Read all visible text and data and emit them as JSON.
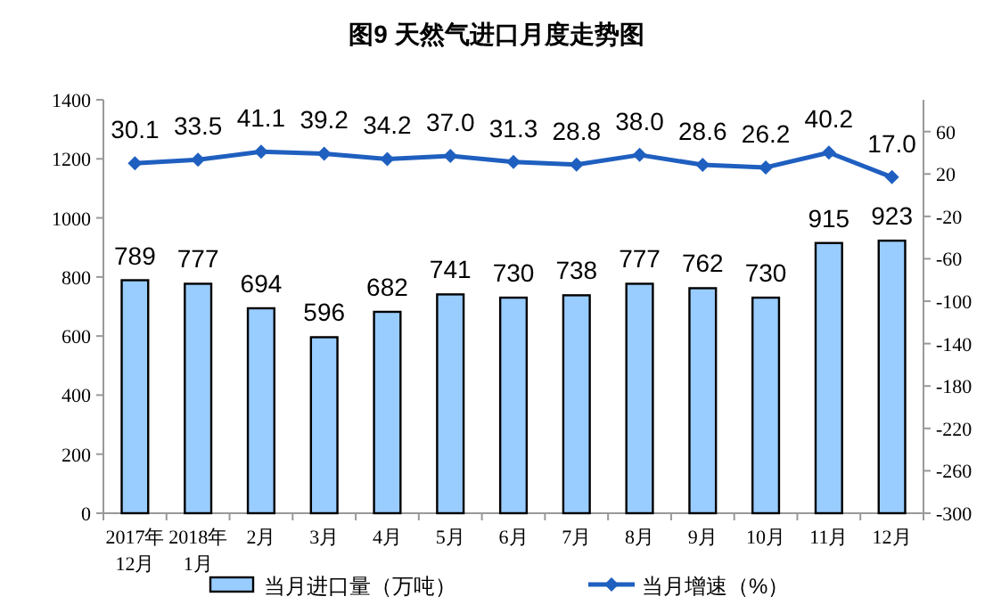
{
  "chart_data": {
    "type": "bar",
    "title": "图9  天然气进口月度走势图",
    "categories": [
      "2017年\n12月",
      "2018年\n1月",
      "2月",
      "3月",
      "4月",
      "5月",
      "6月",
      "7月",
      "8月",
      "9月",
      "10月",
      "11月",
      "12月"
    ],
    "series": [
      {
        "name": "当月进口量（万吨）",
        "color": "#99ccff",
        "values": [
          789,
          777,
          694,
          596,
          682,
          741,
          730,
          738,
          777,
          762,
          730,
          915,
          923
        ]
      },
      {
        "name": "当月增速（%）",
        "type": "line",
        "axis": "y2",
        "color": "#1f5fbf",
        "values": [
          30.1,
          33.5,
          41.1,
          39.2,
          34.2,
          37.0,
          31.3,
          28.8,
          38.0,
          28.6,
          26.2,
          40.2,
          17.0
        ],
        "value_labels": [
          "30.1",
          "33.5",
          "41.1",
          "39.2",
          "34.2",
          "37.0",
          "31.3",
          "28.8",
          "38.0",
          "28.6",
          "26.2",
          "40.2",
          "17.0"
        ]
      }
    ],
    "ylim": [
      0,
      1400
    ],
    "yticks": [
      0,
      200,
      400,
      600,
      800,
      1000,
      1200,
      1400
    ],
    "y2lim": [
      -300,
      90
    ],
    "y2ticks": [
      -300,
      -260,
      -220,
      -180,
      -140,
      -100,
      -60,
      -20,
      20,
      60
    ],
    "data_labels": true,
    "legend": "bottom",
    "marker": "diamond",
    "grid": false
  }
}
